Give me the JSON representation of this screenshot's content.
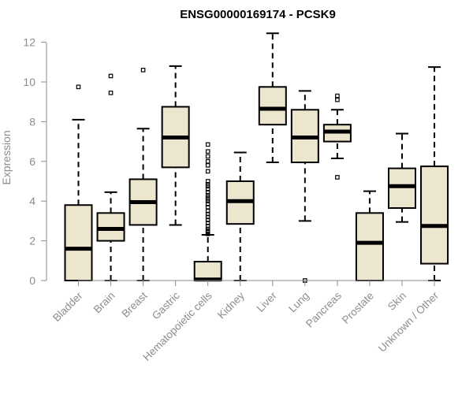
{
  "chart_data": {
    "type": "boxplot",
    "title": "ENSG00000169174 - PCSK9",
    "ylabel": "Expression",
    "xlabel": "",
    "ylim": [
      0,
      12.5
    ],
    "yticks": [
      "0",
      "2",
      "4",
      "6",
      "8",
      "10",
      "12"
    ],
    "box_fill": "#ede6cf",
    "categories": [
      {
        "name": "Bladder",
        "min": 0,
        "q1": 0,
        "median": 1.6,
        "q3": 3.8,
        "max": 8.1,
        "outliers": [
          9.75
        ]
      },
      {
        "name": "Brain",
        "min": 0,
        "q1": 2.0,
        "median": 2.6,
        "q3": 3.4,
        "max": 4.45,
        "outliers": [
          9.45,
          10.3
        ]
      },
      {
        "name": "Breast",
        "min": 0,
        "q1": 2.8,
        "median": 3.95,
        "q3": 5.1,
        "max": 7.65,
        "outliers": [
          10.6
        ]
      },
      {
        "name": "Gastric",
        "min": 2.8,
        "q1": 5.7,
        "median": 7.2,
        "q3": 8.75,
        "max": 10.8,
        "outliers": []
      },
      {
        "name": "Hematopoietic cells",
        "min": 0,
        "q1": 0,
        "median": 0.05,
        "q3": 0.95,
        "max": 2.3,
        "outliers": [
          2.35,
          2.45,
          2.5,
          2.6,
          2.75,
          2.9,
          3.05,
          3.2,
          3.35,
          3.5,
          3.7,
          3.85,
          4.0,
          4.1,
          4.2,
          4.3,
          4.45,
          4.6,
          4.75,
          4.85,
          5.0,
          5.5,
          5.8,
          6.0,
          6.25,
          6.5,
          6.85
        ]
      },
      {
        "name": "Kidney",
        "min": 0,
        "q1": 2.85,
        "median": 4.0,
        "q3": 5.0,
        "max": 6.45,
        "outliers": []
      },
      {
        "name": "Liver",
        "min": 5.95,
        "q1": 7.85,
        "median": 8.65,
        "q3": 9.75,
        "max": 12.45,
        "outliers": []
      },
      {
        "name": "Lung",
        "min": 3.0,
        "q1": 5.95,
        "median": 7.2,
        "q3": 8.6,
        "max": 9.55,
        "outliers": [
          0
        ]
      },
      {
        "name": "Pancreas",
        "min": 6.15,
        "q1": 7.0,
        "median": 7.5,
        "q3": 7.85,
        "max": 8.6,
        "outliers": [
          5.2,
          9.1,
          9.3
        ]
      },
      {
        "name": "Prostate",
        "min": 0,
        "q1": 0,
        "median": 1.9,
        "q3": 3.4,
        "max": 4.5,
        "outliers": []
      },
      {
        "name": "Skin",
        "min": 2.95,
        "q1": 3.65,
        "median": 4.75,
        "q3": 5.65,
        "max": 7.4,
        "outliers": []
      },
      {
        "name": "Unknown / Other",
        "min": 0,
        "q1": 0.85,
        "median": 2.75,
        "q3": 5.75,
        "max": 10.75,
        "outliers": []
      }
    ]
  }
}
